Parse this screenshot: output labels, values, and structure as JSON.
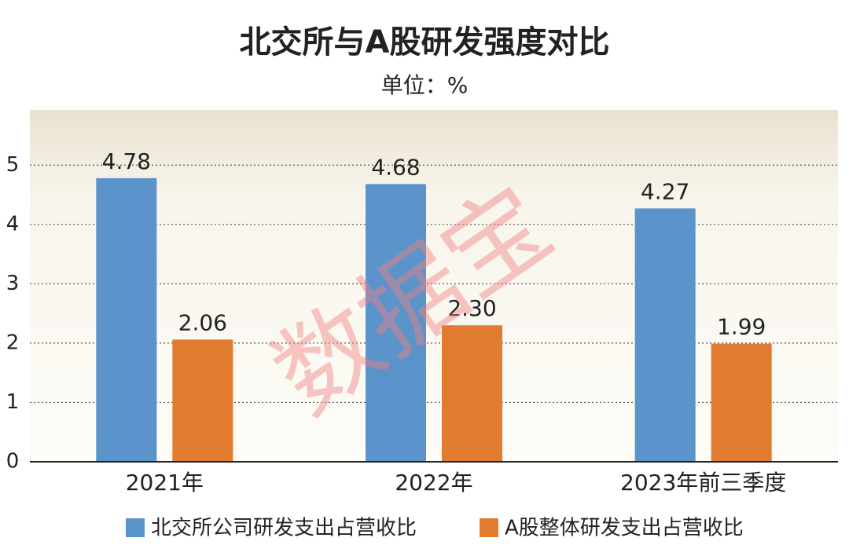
{
  "chart_data": {
    "type": "bar",
    "title": "北交所与A股研发强度对比",
    "subtitle": "单位：%",
    "watermark": "数据宝",
    "categories": [
      "2021年",
      "2022年",
      "2023年前三季度"
    ],
    "series": [
      {
        "name": "北交所公司研发支出占营收比",
        "color": "#5b93cb",
        "values": [
          4.78,
          4.68,
          4.27
        ],
        "value_labels": [
          "4.78",
          "4.68",
          "4.27"
        ]
      },
      {
        "name": "A股整体研发支出占营收比",
        "color": "#e07b30",
        "values": [
          2.06,
          2.3,
          1.99
        ],
        "value_labels": [
          "2.06",
          "2.30",
          "1.99"
        ]
      }
    ],
    "ylim": [
      0,
      5.93
    ],
    "yticks": [
      0,
      1,
      2,
      3,
      4,
      5
    ],
    "grid": true
  }
}
